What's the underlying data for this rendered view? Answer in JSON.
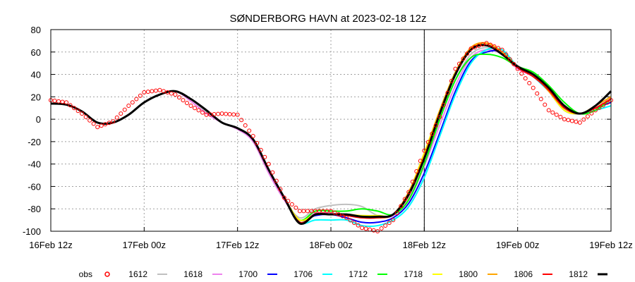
{
  "chart_data": {
    "type": "line",
    "title": "SØNDERBORG HAVN at 2023-02-18 12z",
    "xlabel": "",
    "ylabel": "",
    "ylim": [
      -100,
      80
    ],
    "yticks": [
      "80",
      "60",
      "40",
      "20",
      "0",
      "-20",
      "-40",
      "-60",
      "-80",
      "-100"
    ],
    "xlim_hours": [
      0,
      72
    ],
    "xticks": [
      "16Feb 12z",
      "17Feb 00z",
      "17Feb 12z",
      "18Feb 00z",
      "18Feb 12z",
      "19Feb 00z",
      "19Feb 12z"
    ],
    "analysis_time_hour": 48,
    "grid": true,
    "legend_position": "bottom",
    "x_hours": [
      0,
      2,
      4,
      6,
      8,
      10,
      12,
      14,
      16,
      18,
      20,
      22,
      24,
      26,
      28,
      30,
      32,
      34,
      36,
      38,
      40,
      42,
      44,
      46,
      48,
      50,
      52,
      54,
      56,
      58,
      60,
      62,
      64,
      66,
      68,
      70,
      72
    ],
    "series": [
      {
        "name": "obs",
        "color": "#ff0000",
        "style": "marker",
        "values": [
          17,
          15,
          5,
          -7,
          -2,
          12,
          24,
          26,
          22,
          12,
          4,
          5,
          4,
          -15,
          -40,
          -70,
          -82,
          -82,
          -82,
          -88,
          -97,
          -100,
          -90,
          -65,
          -28,
          2,
          45,
          63,
          68,
          62,
          45,
          28,
          8,
          0,
          -3,
          8,
          17
        ]
      },
      {
        "name": "1612",
        "color": "#c0c0c0",
        "style": "line",
        "values": [
          14,
          13,
          7,
          -3,
          -3,
          4,
          15,
          22,
          25,
          18,
          6,
          -3,
          -8,
          -20,
          -48,
          -72,
          -88,
          -80,
          -77,
          -76,
          -78,
          -86,
          -86,
          -70,
          -40,
          0,
          35,
          58,
          64,
          60,
          48,
          40,
          25,
          10,
          5,
          10,
          20
        ]
      },
      {
        "name": "1618",
        "color": "#ee82ee",
        "style": "line",
        "values": [
          14,
          13,
          7,
          -3,
          -3,
          4,
          15,
          22,
          25,
          16,
          5,
          -3,
          -9,
          -20,
          -48,
          -72,
          -90,
          -84,
          -84,
          -86,
          -88,
          -88,
          -86,
          -72,
          -42,
          -5,
          30,
          55,
          62,
          58,
          45,
          38,
          25,
          10,
          5,
          10,
          18
        ]
      },
      {
        "name": "1700",
        "color": "#0000ff",
        "style": "line",
        "values": [
          14,
          13,
          7,
          -3,
          -3,
          4,
          15,
          22,
          25,
          18,
          8,
          -3,
          -8,
          -18,
          -45,
          -70,
          -90,
          -86,
          -85,
          -88,
          -92,
          -92,
          -88,
          -75,
          -48,
          -12,
          25,
          52,
          60,
          60,
          47,
          40,
          25,
          8,
          5,
          10,
          15
        ]
      },
      {
        "name": "1706",
        "color": "#00ffff",
        "style": "line",
        "values": [
          14,
          13,
          7,
          -3,
          -3,
          4,
          15,
          22,
          25,
          18,
          8,
          -3,
          -8,
          -18,
          -45,
          -70,
          -92,
          -90,
          -90,
          -90,
          -95,
          -95,
          -90,
          -78,
          -52,
          -15,
          22,
          50,
          62,
          62,
          47,
          38,
          25,
          10,
          5,
          8,
          12
        ]
      },
      {
        "name": "1712",
        "color": "#00ff00",
        "style": "line",
        "values": [
          14,
          13,
          7,
          -3,
          -3,
          4,
          15,
          22,
          25,
          18,
          8,
          -3,
          -8,
          -18,
          -45,
          -70,
          -90,
          -82,
          -82,
          -82,
          -80,
          -82,
          -85,
          -72,
          -40,
          0,
          35,
          55,
          58,
          55,
          47,
          42,
          30,
          15,
          5,
          8,
          18
        ]
      },
      {
        "name": "1718",
        "color": "#ffff00",
        "style": "line",
        "values": [
          14,
          13,
          7,
          -3,
          -3,
          4,
          15,
          22,
          25,
          18,
          8,
          -3,
          -8,
          -18,
          -45,
          -70,
          -90,
          -85,
          -85,
          -85,
          -86,
          -86,
          -85,
          -65,
          -30,
          8,
          42,
          63,
          68,
          60,
          47,
          40,
          25,
          8,
          5,
          10,
          18
        ]
      },
      {
        "name": "1800",
        "color": "#ffa500",
        "style": "line",
        "values": [
          14,
          13,
          7,
          -3,
          -3,
          4,
          15,
          22,
          25,
          18,
          8,
          -3,
          -8,
          -18,
          -45,
          -70,
          -92,
          -85,
          -85,
          -85,
          -87,
          -88,
          -85,
          -65,
          -32,
          8,
          42,
          64,
          68,
          60,
          47,
          40,
          25,
          10,
          5,
          12,
          20
        ]
      },
      {
        "name": "1806",
        "color": "#ff0000",
        "style": "line",
        "values": [
          14,
          13,
          7,
          -3,
          -3,
          4,
          15,
          22,
          25,
          18,
          8,
          -3,
          -8,
          -18,
          -45,
          -70,
          -92,
          -85,
          -85,
          -86,
          -88,
          -88,
          -85,
          -68,
          -35,
          5,
          40,
          62,
          66,
          58,
          46,
          38,
          26,
          10,
          5,
          10,
          18
        ]
      },
      {
        "name": "1812",
        "color": "#000000",
        "style": "thick",
        "values": [
          14,
          13,
          7,
          -3,
          -3,
          4,
          15,
          22,
          25,
          18,
          8,
          -3,
          -8,
          -18,
          -45,
          -70,
          -93,
          -85,
          -85,
          -85,
          -87,
          -87,
          -85,
          -67,
          -35,
          5,
          40,
          62,
          66,
          58,
          47,
          40,
          28,
          12,
          5,
          12,
          25
        ]
      }
    ]
  }
}
